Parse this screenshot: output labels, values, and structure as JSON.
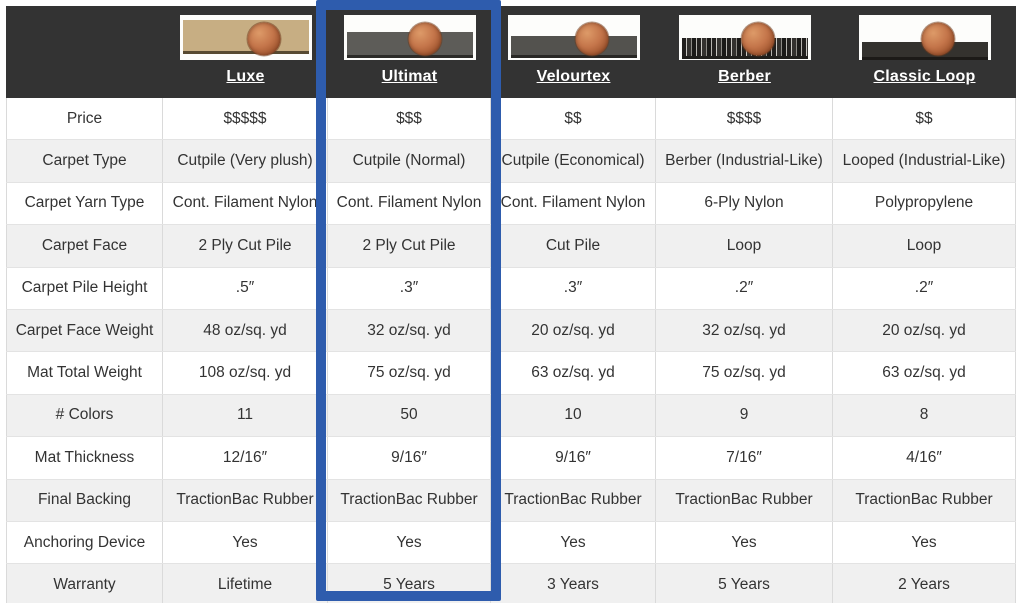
{
  "colors": {
    "accent": "#2e5cad",
    "header_bg": "#333333",
    "row_shaded_bg": "#f0f0f0"
  },
  "table": {
    "highlighted_product": "Ultimat",
    "products": [
      {
        "name": "Luxe",
        "swatch": {
          "carpet_color": "#c7ae83",
          "backing_color": "#574a31",
          "band_top_pct": 12,
          "band_height_pct": 68,
          "texture": "pile",
          "penny_left_pct": 64
        }
      },
      {
        "name": "Ultimat",
        "swatch": {
          "carpet_color": "#5d5c58",
          "backing_color": "#2c2b28",
          "band_top_pct": 38,
          "band_height_pct": 50,
          "texture": "pile",
          "penny_left_pct": 62
        }
      },
      {
        "name": "Velourtex",
        "swatch": {
          "carpet_color": "#53524e",
          "backing_color": "#282724",
          "band_top_pct": 46,
          "band_height_pct": 44,
          "texture": "pile",
          "penny_left_pct": 64
        }
      },
      {
        "name": "Berber",
        "swatch": {
          "carpet_color": "#3a3936",
          "backing_color": "#1f1e1b",
          "band_top_pct": 52,
          "band_height_pct": 40,
          "texture": "speckle",
          "penny_left_pct": 60
        }
      },
      {
        "name": "Classic Loop",
        "swatch": {
          "carpet_color": "#34322e",
          "backing_color": "#1c1a17",
          "band_top_pct": 60,
          "band_height_pct": 33,
          "texture": "pile",
          "penny_left_pct": 60
        }
      }
    ],
    "rows": [
      {
        "label": "Price",
        "values": [
          "$$$$$",
          "$$$",
          "$$",
          "$$$$",
          "$$"
        ]
      },
      {
        "label": "Carpet Type",
        "values": [
          "Cutpile (Very plush)",
          "Cutpile (Normal)",
          "Cutpile (Economical)",
          "Berber (Industrial-Like)",
          "Looped (Industrial-Like)"
        ]
      },
      {
        "label": "Carpet Yarn Type",
        "values": [
          "Cont. Filament Nylon",
          "Cont. Filament Nylon",
          "Cont. Filament Nylon",
          "6-Ply Nylon",
          "Polypropylene"
        ]
      },
      {
        "label": "Carpet Face",
        "values": [
          "2 Ply Cut Pile",
          "2 Ply Cut Pile",
          "Cut Pile",
          "Loop",
          "Loop"
        ]
      },
      {
        "label": "Carpet Pile Height",
        "values": [
          ".5″",
          ".3″",
          ".3″",
          ".2″",
          ".2″"
        ]
      },
      {
        "label": "Carpet Face Weight",
        "values": [
          "48 oz/sq. yd",
          "32 oz/sq. yd",
          "20 oz/sq. yd",
          "32 oz/sq. yd",
          "20 oz/sq. yd"
        ]
      },
      {
        "label": "Mat Total Weight",
        "values": [
          "108 oz/sq. yd",
          "75 oz/sq. yd",
          "63 oz/sq. yd",
          "75 oz/sq. yd",
          "63 oz/sq. yd"
        ]
      },
      {
        "label": "# Colors",
        "values": [
          "11",
          "50",
          "10",
          "9",
          "8"
        ]
      },
      {
        "label": "Mat Thickness",
        "values": [
          "12/16″",
          "9/16″",
          "9/16″",
          "7/16″",
          "4/16″"
        ]
      },
      {
        "label": "Final Backing",
        "values": [
          "TractionBac Rubber",
          "TractionBac Rubber",
          "TractionBac Rubber",
          "TractionBac Rubber",
          "TractionBac Rubber"
        ]
      },
      {
        "label": "Anchoring Device",
        "values": [
          "Yes",
          "Yes",
          "Yes",
          "Yes",
          "Yes"
        ]
      },
      {
        "label": "Warranty",
        "values": [
          "Lifetime",
          "5 Years",
          "3 Years",
          "5 Years",
          "2 Years"
        ]
      }
    ]
  }
}
